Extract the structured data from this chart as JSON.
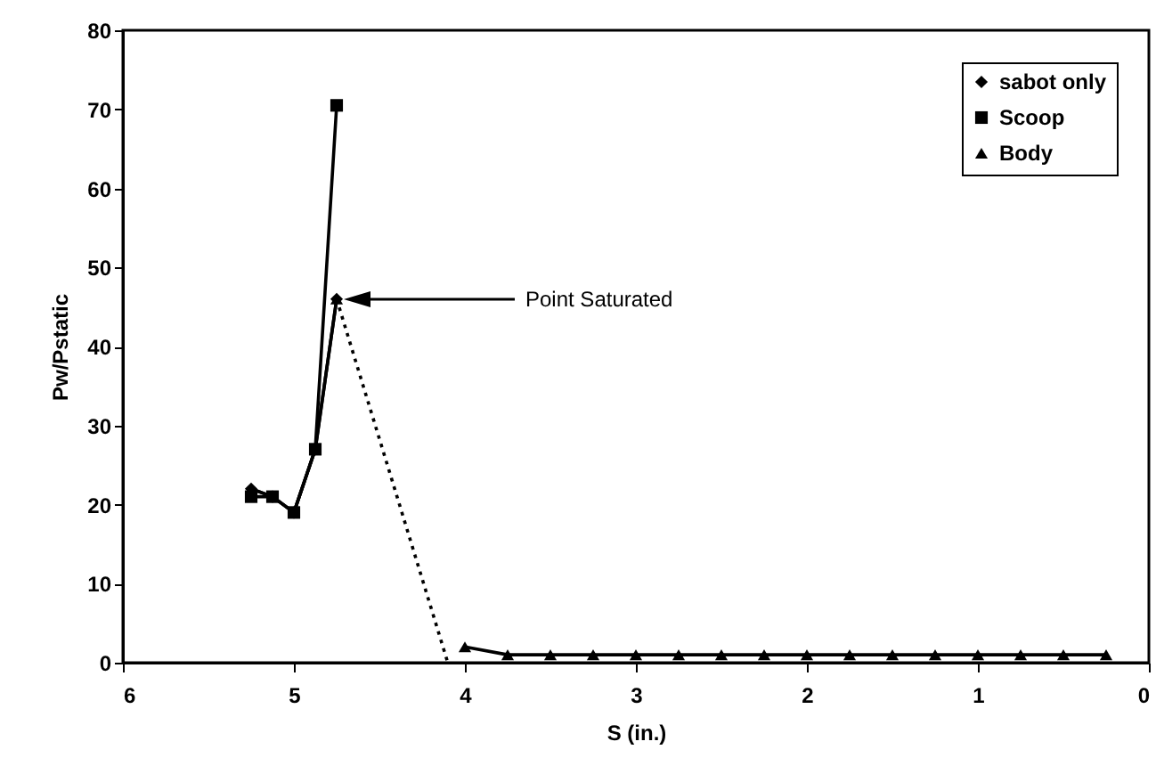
{
  "chart_data": {
    "type": "line",
    "xlabel": "S (in.)",
    "ylabel": "Pw/Pstatic",
    "xlim": [
      6,
      0
    ],
    "xticks": [
      6,
      5,
      4,
      3,
      2,
      1,
      0
    ],
    "ylim": [
      0,
      80
    ],
    "yticks": [
      0,
      10,
      20,
      30,
      40,
      50,
      60,
      70,
      80
    ],
    "grid": false,
    "legend": "top right",
    "line_style": "solid",
    "series": [
      {
        "name": "sabot only",
        "color": "#000000",
        "marker": "diamond",
        "x": [
          5.25,
          5.125,
          5.0,
          4.875,
          4.75
        ],
        "values": [
          22,
          21,
          19,
          27,
          46
        ]
      },
      {
        "name": "Scoop",
        "color": "#000000",
        "marker": "square",
        "x": [
          5.25,
          5.125,
          5.0,
          4.875,
          4.75
        ],
        "values": [
          21,
          21,
          19,
          27,
          70.5
        ]
      },
      {
        "name": "Body",
        "color": "#000000",
        "marker": "triangle",
        "x": [
          5.25,
          5.125,
          5.0,
          4.875,
          4.75
        ],
        "values": [
          22,
          21,
          19,
          27,
          46
        ]
      },
      {
        "color": "#000000",
        "marker": "triangle",
        "x": [
          4.0,
          3.75,
          3.5,
          3.25,
          3.0,
          2.75,
          2.5,
          2.25,
          2.0,
          1.75,
          1.5,
          1.25,
          1.0,
          0.75,
          0.5,
          0.25
        ],
        "values": [
          2,
          1,
          1,
          1,
          1,
          1,
          1,
          1,
          1,
          1,
          1,
          1,
          1,
          1,
          1,
          1
        ]
      },
      {
        "color": "#000000",
        "marker": "none",
        "line_style": "dotted",
        "x": [
          4.75,
          4.1
        ],
        "values": [
          46,
          0
        ]
      }
    ],
    "annotations": [
      "Point Saturated"
    ]
  }
}
